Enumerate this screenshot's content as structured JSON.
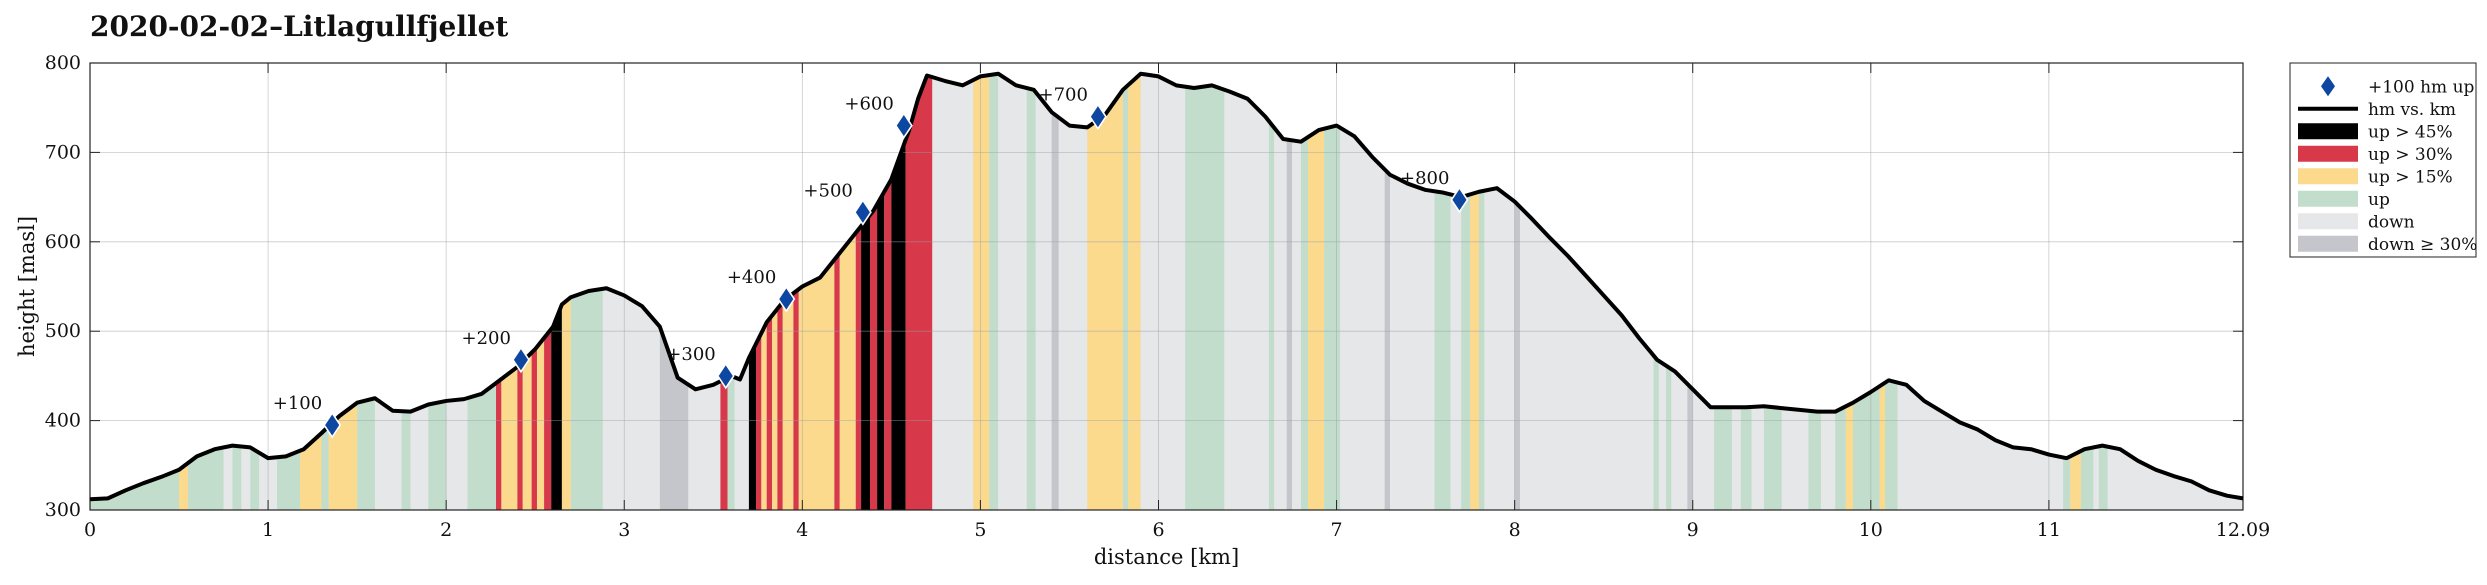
{
  "title": "2020-02-02–Litlagullfjellet",
  "chart_data": {
    "type": "area",
    "title": "2020-02-02–Litlagullfjellet",
    "xlabel": "distance [km]",
    "ylabel": "height [masl]",
    "xlim": [
      0,
      12.09
    ],
    "ylim": [
      300,
      800
    ],
    "x_ticks": [
      "0",
      "1",
      "2",
      "3",
      "4",
      "5",
      "6",
      "7",
      "8",
      "9",
      "10",
      "11",
      "12.09"
    ],
    "y_ticks": [
      "300",
      "400",
      "500",
      "600",
      "700",
      "800"
    ],
    "grid": true,
    "legend_position": "outside-right-top",
    "legend": [
      {
        "label": "+100 hm up",
        "kind": "marker",
        "color": "#0d47a1"
      },
      {
        "label": "hm vs. km",
        "kind": "line",
        "color": "#000000"
      },
      {
        "label": "up > 45%",
        "kind": "patch",
        "color": "#000000"
      },
      {
        "label": "up > 30%",
        "kind": "patch",
        "color": "#d7384a"
      },
      {
        "label": "up > 15%",
        "kind": "patch",
        "color": "#fbd98d"
      },
      {
        "label": "up",
        "kind": "patch",
        "color": "#c2ddcb"
      },
      {
        "label": "down",
        "kind": "patch",
        "color": "#e6e7e9"
      },
      {
        "label": "down ≥ 30%",
        "kind": "patch",
        "color": "#c4c6cb"
      }
    ],
    "profile": {
      "x": [
        0,
        0.1,
        0.2,
        0.3,
        0.4,
        0.5,
        0.6,
        0.7,
        0.8,
        0.9,
        1.0,
        1.1,
        1.2,
        1.3,
        1.4,
        1.5,
        1.6,
        1.7,
        1.8,
        1.9,
        2.0,
        2.1,
        2.2,
        2.3,
        2.4,
        2.5,
        2.6,
        2.65,
        2.7,
        2.8,
        2.9,
        3.0,
        3.1,
        3.2,
        3.3,
        3.4,
        3.5,
        3.6,
        3.65,
        3.7,
        3.8,
        3.9,
        4.0,
        4.1,
        4.2,
        4.3,
        4.4,
        4.5,
        4.6,
        4.65,
        4.7,
        4.8,
        4.9,
        5.0,
        5.1,
        5.2,
        5.3,
        5.4,
        5.5,
        5.6,
        5.7,
        5.8,
        5.9,
        6.0,
        6.1,
        6.2,
        6.3,
        6.4,
        6.5,
        6.6,
        6.7,
        6.8,
        6.9,
        7.0,
        7.1,
        7.2,
        7.3,
        7.4,
        7.5,
        7.6,
        7.7,
        7.8,
        7.9,
        8.0,
        8.1,
        8.2,
        8.3,
        8.4,
        8.5,
        8.6,
        8.7,
        8.8,
        8.9,
        9.0,
        9.1,
        9.2,
        9.3,
        9.4,
        9.5,
        9.6,
        9.7,
        9.8,
        9.9,
        10.0,
        10.1,
        10.2,
        10.3,
        10.4,
        10.5,
        10.6,
        10.7,
        10.8,
        10.9,
        11.0,
        11.1,
        11.2,
        11.3,
        11.4,
        11.5,
        11.6,
        11.7,
        11.8,
        11.9,
        12.0,
        12.09
      ],
      "y": [
        312,
        313,
        322,
        330,
        337,
        345,
        360,
        368,
        372,
        370,
        358,
        360,
        368,
        386,
        405,
        420,
        425,
        411,
        410,
        418,
        422,
        424,
        430,
        445,
        460,
        480,
        505,
        530,
        538,
        545,
        548,
        540,
        528,
        505,
        448,
        435,
        440,
        450,
        446,
        470,
        510,
        535,
        550,
        560,
        585,
        610,
        635,
        670,
        725,
        760,
        786,
        780,
        775,
        785,
        788,
        775,
        770,
        745,
        730,
        728,
        742,
        770,
        788,
        785,
        775,
        772,
        775,
        768,
        760,
        740,
        715,
        712,
        725,
        730,
        718,
        695,
        675,
        665,
        658,
        655,
        650,
        656,
        660,
        645,
        625,
        604,
        584,
        562,
        540,
        518,
        492,
        468,
        455,
        435,
        415,
        415,
        415,
        416,
        414,
        412,
        410,
        410,
        420,
        432,
        445,
        440,
        422,
        410,
        398,
        390,
        378,
        370,
        368,
        362,
        358,
        368,
        372,
        368,
        355,
        345,
        338,
        332,
        322,
        316,
        313
      ]
    },
    "milestones": [
      {
        "label": "+100",
        "x": 1.36,
        "y": 395
      },
      {
        "label": "+200",
        "x": 2.42,
        "y": 468
      },
      {
        "label": "+300",
        "x": 3.57,
        "y": 450
      },
      {
        "label": "+400",
        "x": 3.91,
        "y": 536
      },
      {
        "label": "+500",
        "x": 4.34,
        "y": 633
      },
      {
        "label": "+600",
        "x": 4.57,
        "y": 730
      },
      {
        "label": "+700",
        "x": 5.66,
        "y": 740
      },
      {
        "label": "+800",
        "x": 7.69,
        "y": 647
      }
    ],
    "segments": [
      {
        "x0": 0.0,
        "x1": 0.5,
        "class": "up"
      },
      {
        "x0": 0.5,
        "x1": 0.55,
        "class": "up > 15%"
      },
      {
        "x0": 0.55,
        "x1": 0.75,
        "class": "up"
      },
      {
        "x0": 0.75,
        "x1": 0.8,
        "class": "down"
      },
      {
        "x0": 0.8,
        "x1": 0.85,
        "class": "up"
      },
      {
        "x0": 0.85,
        "x1": 0.9,
        "class": "down"
      },
      {
        "x0": 0.9,
        "x1": 0.95,
        "class": "up"
      },
      {
        "x0": 0.95,
        "x1": 1.05,
        "class": "down"
      },
      {
        "x0": 1.05,
        "x1": 1.18,
        "class": "up"
      },
      {
        "x0": 1.18,
        "x1": 1.3,
        "class": "up > 15%"
      },
      {
        "x0": 1.3,
        "x1": 1.34,
        "class": "up"
      },
      {
        "x0": 1.34,
        "x1": 1.5,
        "class": "up > 15%"
      },
      {
        "x0": 1.5,
        "x1": 1.6,
        "class": "up"
      },
      {
        "x0": 1.6,
        "x1": 1.65,
        "class": "down"
      },
      {
        "x0": 1.65,
        "x1": 1.75,
        "class": "down"
      },
      {
        "x0": 1.75,
        "x1": 1.8,
        "class": "up"
      },
      {
        "x0": 1.8,
        "x1": 1.9,
        "class": "down"
      },
      {
        "x0": 1.9,
        "x1": 2.0,
        "class": "up"
      },
      {
        "x0": 2.0,
        "x1": 2.12,
        "class": "down"
      },
      {
        "x0": 2.12,
        "x1": 2.28,
        "class": "up"
      },
      {
        "x0": 2.28,
        "x1": 2.31,
        "class": "up > 30%"
      },
      {
        "x0": 2.31,
        "x1": 2.4,
        "class": "up > 15%"
      },
      {
        "x0": 2.4,
        "x1": 2.43,
        "class": "up > 30%"
      },
      {
        "x0": 2.43,
        "x1": 2.48,
        "class": "up > 15%"
      },
      {
        "x0": 2.48,
        "x1": 2.51,
        "class": "up > 30%"
      },
      {
        "x0": 2.51,
        "x1": 2.55,
        "class": "up > 15%"
      },
      {
        "x0": 2.55,
        "x1": 2.59,
        "class": "up > 30%"
      },
      {
        "x0": 2.59,
        "x1": 2.65,
        "class": "up > 45%"
      },
      {
        "x0": 2.65,
        "x1": 2.7,
        "class": "up > 15%"
      },
      {
        "x0": 2.7,
        "x1": 2.88,
        "class": "up"
      },
      {
        "x0": 2.88,
        "x1": 3.2,
        "class": "down"
      },
      {
        "x0": 3.2,
        "x1": 3.36,
        "class": "down ≥ 30%"
      },
      {
        "x0": 3.36,
        "x1": 3.54,
        "class": "down"
      },
      {
        "x0": 3.54,
        "x1": 3.58,
        "class": "up > 30%"
      },
      {
        "x0": 3.58,
        "x1": 3.62,
        "class": "up"
      },
      {
        "x0": 3.62,
        "x1": 3.7,
        "class": "down"
      },
      {
        "x0": 3.7,
        "x1": 3.74,
        "class": "up > 45%"
      },
      {
        "x0": 3.74,
        "x1": 3.77,
        "class": "up > 30%"
      },
      {
        "x0": 3.77,
        "x1": 3.8,
        "class": "up > 15%"
      },
      {
        "x0": 3.8,
        "x1": 3.83,
        "class": "up > 30%"
      },
      {
        "x0": 3.83,
        "x1": 3.86,
        "class": "up > 15%"
      },
      {
        "x0": 3.86,
        "x1": 3.89,
        "class": "up > 30%"
      },
      {
        "x0": 3.89,
        "x1": 3.95,
        "class": "up > 15%"
      },
      {
        "x0": 3.95,
        "x1": 3.98,
        "class": "up > 30%"
      },
      {
        "x0": 3.98,
        "x1": 4.18,
        "class": "up > 15%"
      },
      {
        "x0": 4.18,
        "x1": 4.21,
        "class": "up > 30%"
      },
      {
        "x0": 4.21,
        "x1": 4.3,
        "class": "up > 15%"
      },
      {
        "x0": 4.3,
        "x1": 4.33,
        "class": "up > 30%"
      },
      {
        "x0": 4.33,
        "x1": 4.38,
        "class": "up > 45%"
      },
      {
        "x0": 4.38,
        "x1": 4.42,
        "class": "up > 30%"
      },
      {
        "x0": 4.42,
        "x1": 4.46,
        "class": "up > 45%"
      },
      {
        "x0": 4.46,
        "x1": 4.5,
        "class": "up > 30%"
      },
      {
        "x0": 4.5,
        "x1": 4.58,
        "class": "up > 45%"
      },
      {
        "x0": 4.58,
        "x1": 4.73,
        "class": "up > 30%"
      },
      {
        "x0": 4.73,
        "x1": 4.96,
        "class": "down"
      },
      {
        "x0": 4.96,
        "x1": 5.05,
        "class": "up > 15%"
      },
      {
        "x0": 5.05,
        "x1": 5.1,
        "class": "up"
      },
      {
        "x0": 5.1,
        "x1": 5.26,
        "class": "down"
      },
      {
        "x0": 5.26,
        "x1": 5.31,
        "class": "up"
      },
      {
        "x0": 5.31,
        "x1": 5.4,
        "class": "down"
      },
      {
        "x0": 5.4,
        "x1": 5.44,
        "class": "down ≥ 30%"
      },
      {
        "x0": 5.44,
        "x1": 5.6,
        "class": "down"
      },
      {
        "x0": 5.6,
        "x1": 5.8,
        "class": "up > 15%"
      },
      {
        "x0": 5.8,
        "x1": 5.83,
        "class": "up"
      },
      {
        "x0": 5.83,
        "x1": 5.9,
        "class": "up > 15%"
      },
      {
        "x0": 5.9,
        "x1": 6.15,
        "class": "down"
      },
      {
        "x0": 6.15,
        "x1": 6.37,
        "class": "up"
      },
      {
        "x0": 6.37,
        "x1": 6.62,
        "class": "down"
      },
      {
        "x0": 6.62,
        "x1": 6.65,
        "class": "up"
      },
      {
        "x0": 6.65,
        "x1": 6.72,
        "class": "down"
      },
      {
        "x0": 6.72,
        "x1": 6.75,
        "class": "down ≥ 30%"
      },
      {
        "x0": 6.75,
        "x1": 6.8,
        "class": "down"
      },
      {
        "x0": 6.8,
        "x1": 6.84,
        "class": "up"
      },
      {
        "x0": 6.84,
        "x1": 6.93,
        "class": "up > 15%"
      },
      {
        "x0": 6.93,
        "x1": 7.02,
        "class": "up"
      },
      {
        "x0": 7.02,
        "x1": 7.27,
        "class": "down"
      },
      {
        "x0": 7.27,
        "x1": 7.3,
        "class": "down ≥ 30%"
      },
      {
        "x0": 7.3,
        "x1": 7.55,
        "class": "down"
      },
      {
        "x0": 7.55,
        "x1": 7.64,
        "class": "up"
      },
      {
        "x0": 7.64,
        "x1": 7.7,
        "class": "down"
      },
      {
        "x0": 7.7,
        "x1": 7.75,
        "class": "up"
      },
      {
        "x0": 7.75,
        "x1": 7.8,
        "class": "up > 15%"
      },
      {
        "x0": 7.8,
        "x1": 7.83,
        "class": "up"
      },
      {
        "x0": 7.83,
        "x1": 8.0,
        "class": "down"
      },
      {
        "x0": 8.0,
        "x1": 8.03,
        "class": "down ≥ 30%"
      },
      {
        "x0": 8.03,
        "x1": 8.78,
        "class": "down"
      },
      {
        "x0": 8.78,
        "x1": 8.81,
        "class": "up"
      },
      {
        "x0": 8.81,
        "x1": 8.85,
        "class": "down"
      },
      {
        "x0": 8.85,
        "x1": 8.88,
        "class": "up"
      },
      {
        "x0": 8.88,
        "x1": 8.97,
        "class": "down"
      },
      {
        "x0": 8.97,
        "x1": 9.0,
        "class": "down ≥ 30%"
      },
      {
        "x0": 9.0,
        "x1": 9.12,
        "class": "down"
      },
      {
        "x0": 9.12,
        "x1": 9.22,
        "class": "up"
      },
      {
        "x0": 9.22,
        "x1": 9.27,
        "class": "down"
      },
      {
        "x0": 9.27,
        "x1": 9.33,
        "class": "up"
      },
      {
        "x0": 9.33,
        "x1": 9.4,
        "class": "down"
      },
      {
        "x0": 9.4,
        "x1": 9.5,
        "class": "up"
      },
      {
        "x0": 9.5,
        "x1": 9.65,
        "class": "down"
      },
      {
        "x0": 9.65,
        "x1": 9.72,
        "class": "up"
      },
      {
        "x0": 9.72,
        "x1": 9.8,
        "class": "down"
      },
      {
        "x0": 9.8,
        "x1": 9.86,
        "class": "up"
      },
      {
        "x0": 9.86,
        "x1": 9.9,
        "class": "up > 15%"
      },
      {
        "x0": 9.9,
        "x1": 10.05,
        "class": "up"
      },
      {
        "x0": 10.05,
        "x1": 10.08,
        "class": "up > 15%"
      },
      {
        "x0": 10.08,
        "x1": 10.15,
        "class": "up"
      },
      {
        "x0": 10.15,
        "x1": 11.08,
        "class": "down"
      },
      {
        "x0": 11.08,
        "x1": 11.12,
        "class": "up"
      },
      {
        "x0": 11.12,
        "x1": 11.18,
        "class": "up > 15%"
      },
      {
        "x0": 11.18,
        "x1": 11.25,
        "class": "up"
      },
      {
        "x0": 11.25,
        "x1": 11.28,
        "class": "down"
      },
      {
        "x0": 11.28,
        "x1": 11.33,
        "class": "up"
      },
      {
        "x0": 11.33,
        "x1": 12.09,
        "class": "down"
      }
    ]
  }
}
